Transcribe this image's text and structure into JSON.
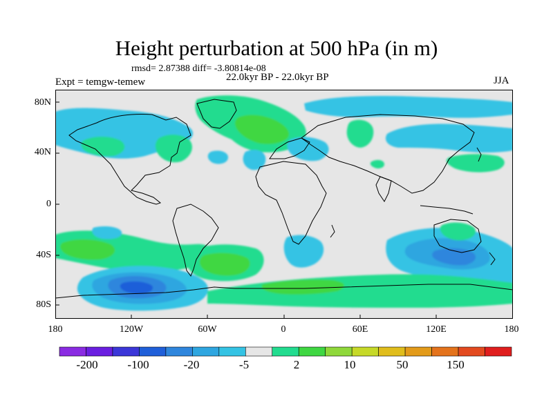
{
  "header": {
    "title": "Height perturbation at 500 hPa (in m)",
    "stats": "rmsd= 2.87388 diff= -3.80814e-08",
    "experiment": "Expt = temgw-temew",
    "period": "22.0kyr BP - 22.0kyr BP",
    "season": "JJA"
  },
  "axes": {
    "lat_labels": [
      "80N",
      "40N",
      "0",
      "40S",
      "80S"
    ],
    "lon_labels": [
      "180",
      "120W",
      "60W",
      "0",
      "60E",
      "120E",
      "180"
    ]
  },
  "colorbar": {
    "colors": [
      "#8a2be2",
      "#6a1ee0",
      "#3b36d8",
      "#1f5fd9",
      "#2f86dd",
      "#2ea6e0",
      "#34c3e4",
      "#e6e6e6",
      "#22dc8f",
      "#3fd742",
      "#8fd83a",
      "#c6d928",
      "#e0bd1c",
      "#e39b1a",
      "#e4731c",
      "#e34a1f",
      "#e01e1e"
    ],
    "labels": [
      "-200",
      "-100",
      "-20",
      "-5",
      "2",
      "10",
      "50",
      "150"
    ]
  },
  "colors": {
    "land_outline": "#000000",
    "background_field": "#e6e6e6",
    "blue_light": "#34c3e4",
    "blue_mid": "#2ea6e0",
    "blue_dark": "#2f86dd",
    "blue_deep": "#1f5fd9",
    "green_light": "#22dc8f",
    "green_mid": "#3fd742"
  }
}
